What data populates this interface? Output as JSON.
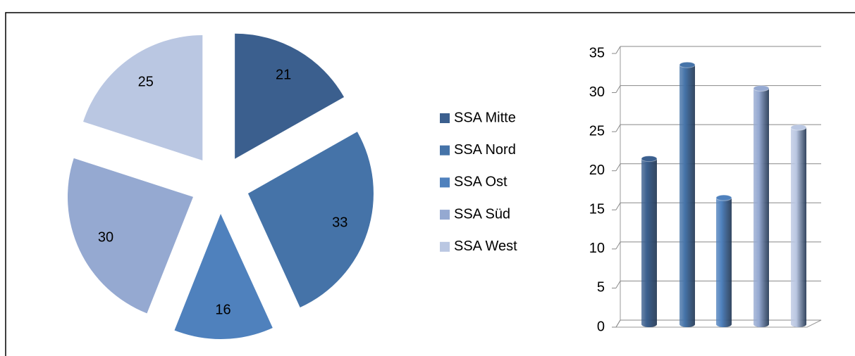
{
  "chart_data": [
    {
      "type": "pie",
      "categories": [
        "SSA Mitte",
        "SSA Nord",
        "SSA Ost",
        "SSA Süd",
        "SSA West"
      ],
      "values": [
        21,
        33,
        16,
        30,
        25
      ],
      "colors": [
        "#3b5f8e",
        "#4573a8",
        "#4f81bd",
        "#95a9d1",
        "#bac7e2"
      ],
      "legend": "right"
    },
    {
      "type": "bar3d",
      "values": [
        21,
        33,
        16,
        30,
        25
      ],
      "colors": [
        "#3b5f8e",
        "#4573a8",
        "#4f81bd",
        "#95a9d1",
        "#bac7e2"
      ],
      "ylim": [
        0,
        35
      ],
      "yticks": [
        0,
        5,
        10,
        15,
        20,
        25,
        30,
        35
      ],
      "grid": true
    }
  ]
}
